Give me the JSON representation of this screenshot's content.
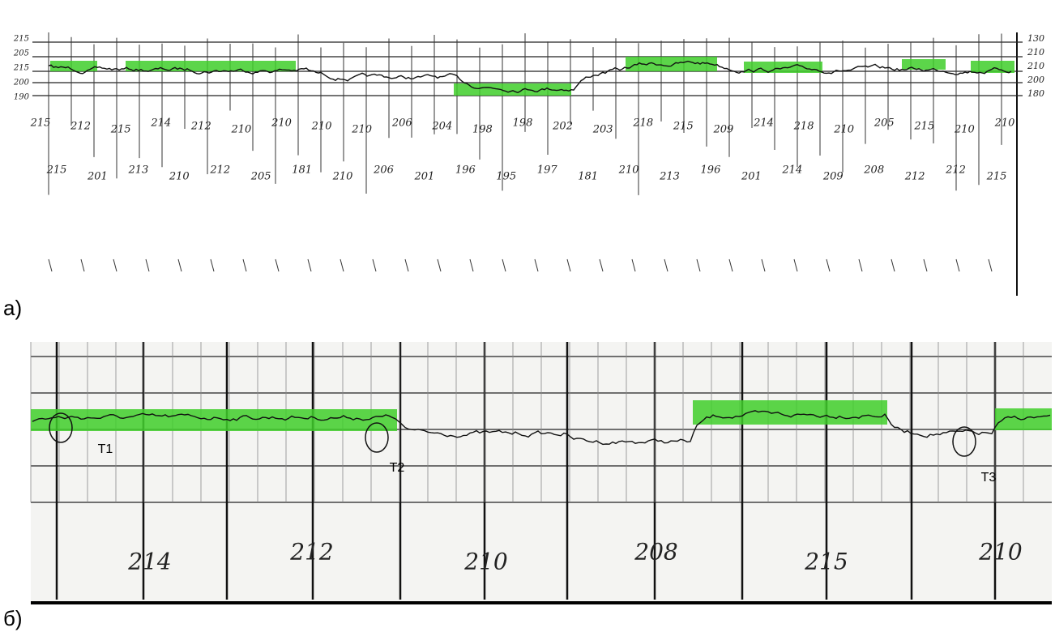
{
  "panel_a": {
    "label": "а)",
    "left_scale": [
      "215",
      "205",
      "215",
      "200",
      "190"
    ],
    "right_scale": [
      "130",
      "210",
      "210",
      "200",
      "180"
    ],
    "readings_top": [
      "215",
      "212",
      "215",
      "214",
      "212",
      "210",
      "210",
      "210",
      "210",
      "206",
      "204",
      "198",
      "198",
      "202",
      "203",
      "218",
      "215",
      "209",
      "214",
      "218",
      "210",
      "205",
      "215",
      "210",
      "210"
    ],
    "readings_bottom": [
      "215",
      "201",
      "213",
      "210",
      "212",
      "205",
      "181",
      "210",
      "206",
      "201",
      "196",
      "195",
      "197",
      "181",
      "210",
      "213",
      "196",
      "201",
      "214",
      "209",
      "208",
      "212",
      "212",
      "215"
    ]
  },
  "panel_b": {
    "label": "б)",
    "markers": [
      "T1",
      "T2",
      "T3"
    ],
    "readings": [
      "214",
      "212",
      "210",
      "208",
      "215",
      "210"
    ]
  }
}
